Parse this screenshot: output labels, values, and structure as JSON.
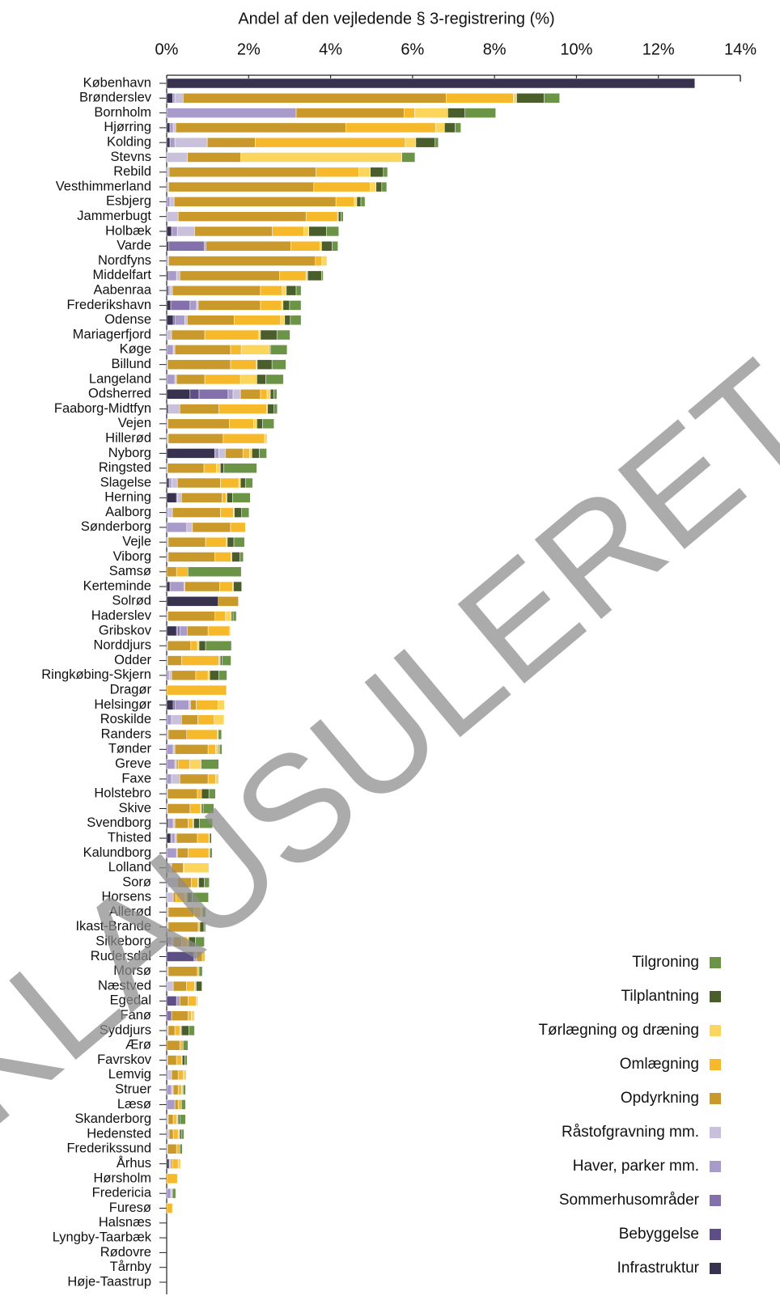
{
  "chart_data": {
    "type": "stacked_barh",
    "x_label": "Andel af den vejledende § 3-registrering (%)",
    "watermark": "KLAUSULERET",
    "xlim": [
      0,
      14
    ],
    "xticks": [
      {
        "value": 0,
        "label": "0%"
      },
      {
        "value": 2,
        "label": "2%"
      },
      {
        "value": 4,
        "label": "4%"
      },
      {
        "value": 6,
        "label": "6%"
      },
      {
        "value": 8,
        "label": "8%"
      },
      {
        "value": 10,
        "label": "10%"
      },
      {
        "value": 12,
        "label": "12%"
      },
      {
        "value": 14,
        "label": "14%"
      }
    ],
    "legend": "lower right",
    "categories": [
      "København",
      "Brønderslev",
      "Bornholm",
      "Hjørring",
      "Kolding",
      "Stevns",
      "Rebild",
      "Vesthimmerland",
      "Esbjerg",
      "Jammerbugt",
      "Holbæk",
      "Varde",
      "Nordfyns",
      "Middelfart",
      "Aabenraa",
      "Frederikshavn",
      "Odense",
      "Mariagerfjord",
      "Køge",
      "Billund",
      "Langeland",
      "Odsherred",
      "Faaborg-Midtfyn",
      "Vejen",
      "Hillerød",
      "Nyborg",
      "Ringsted",
      "Slagelse",
      "Herning",
      "Aalborg",
      "Sønderborg",
      "Vejle",
      "Viborg",
      "Samsø",
      "Kerteminde",
      "Solrød",
      "Haderslev",
      "Gribskov",
      "Norddjurs",
      "Odder",
      "Ringkøbing-Skjern",
      "Dragør",
      "Helsingør",
      "Roskilde",
      "Randers",
      "Tønder",
      "Greve",
      "Faxe",
      "Holstebro",
      "Skive",
      "Svendborg",
      "Thisted",
      "Kalundborg",
      "Lolland",
      "Sorø",
      "Horsens",
      "Allerød",
      "Ikast-Brande",
      "Silkeborg",
      "Rudersdal",
      "Morsø",
      "Næstved",
      "Egedal",
      "Fanø",
      "Syddjurs",
      "Ærø",
      "Favrskov",
      "Lemvig",
      "Struer",
      "Læsø",
      "Skanderborg",
      "Hedensted",
      "Frederikssund",
      "Århus",
      "Hørsholm",
      "Fredericia",
      "Furesø",
      "Halsnæs",
      "Lyngby-Taarbæk",
      "Rødovre",
      "Tårnby",
      "Høje-Taastrup"
    ],
    "series": [
      {
        "name": "Infrastruktur",
        "color": "#38324f",
        "values": [
          12.89,
          0.15,
          0,
          0.08,
          0.08,
          0,
          0,
          0,
          0,
          0,
          0.12,
          0.05,
          0,
          0.04,
          0.04,
          0.1,
          0.16,
          0,
          0,
          0,
          0,
          0.57,
          0.04,
          0,
          0,
          1.17,
          0,
          0.06,
          0.24,
          0,
          0,
          0,
          0,
          0,
          0.08,
          1.26,
          0,
          0.24,
          0,
          0,
          0,
          0,
          0.16,
          0,
          0,
          0,
          0,
          0,
          0,
          0,
          0.04,
          0.1,
          0,
          0,
          0,
          0,
          0,
          0,
          0.04,
          0,
          0,
          0,
          0,
          0,
          0,
          0,
          0,
          0,
          0,
          0,
          0,
          0,
          0,
          0.06,
          0,
          0,
          0,
          0,
          0,
          0,
          0,
          0
        ]
      },
      {
        "name": "Bebyggelse",
        "color": "#5d4e86",
        "values": [
          0,
          0,
          0,
          0,
          0,
          0,
          0,
          0,
          0,
          0,
          0,
          0,
          0,
          0,
          0,
          0,
          0.04,
          0,
          0,
          0,
          0,
          0.22,
          0,
          0,
          0,
          0,
          0,
          0,
          0.02,
          0,
          0,
          0,
          0,
          0,
          0,
          0,
          0,
          0.02,
          0,
          0,
          0,
          0,
          0.04,
          0,
          0,
          0,
          0,
          0,
          0,
          0,
          0,
          0.02,
          0,
          0,
          0,
          0,
          0,
          0,
          0,
          0.67,
          0,
          0,
          0.24,
          0,
          0,
          0,
          0,
          0,
          0,
          0,
          0,
          0,
          0,
          0,
          0,
          0,
          0,
          0,
          0,
          0,
          0,
          0
        ]
      },
      {
        "name": "Sommerhusområder",
        "color": "#8471ac",
        "values": [
          0,
          0,
          0,
          0,
          0,
          0,
          0,
          0,
          0,
          0,
          0,
          0.87,
          0,
          0,
          0,
          0.47,
          0,
          0,
          0,
          0,
          0,
          0.71,
          0,
          0,
          0,
          0,
          0,
          0,
          0,
          0,
          0,
          0,
          0,
          0,
          0,
          0,
          0,
          0.06,
          0,
          0,
          0,
          0,
          0,
          0,
          0,
          0,
          0,
          0,
          0,
          0,
          0,
          0,
          0,
          0,
          0,
          0,
          0,
          0,
          0,
          0,
          0,
          0,
          0,
          0.12,
          0,
          0,
          0,
          0,
          0,
          0,
          0,
          0,
          0,
          0,
          0,
          0,
          0,
          0,
          0,
          0,
          0,
          0
        ]
      },
      {
        "name": "Haver, parker mm.",
        "color": "#a99bc9",
        "values": [
          0,
          0.05,
          3.16,
          0.08,
          0.12,
          0,
          0,
          0,
          0.08,
          0,
          0.14,
          0.04,
          0,
          0.2,
          0.04,
          0.16,
          0.24,
          0,
          0.16,
          0,
          0.2,
          0.12,
          0,
          0,
          0,
          0.1,
          0,
          0.06,
          0,
          0.04,
          0.49,
          0,
          0,
          0,
          0.34,
          0,
          0,
          0.18,
          0,
          0,
          0.06,
          0,
          0.34,
          0.12,
          0,
          0.16,
          0.2,
          0.12,
          0,
          0,
          0.12,
          0.08,
          0.24,
          0.06,
          0,
          0,
          0,
          0,
          0.08,
          0.06,
          0,
          0,
          0.08,
          0,
          0,
          0,
          0,
          0.04,
          0.12,
          0.2,
          0,
          0,
          0,
          0,
          0,
          0.1,
          0,
          0,
          0,
          0,
          0,
          0
        ]
      },
      {
        "name": "Råstofgravning mm.",
        "color": "#c9c0dc",
        "values": [
          0,
          0.2,
          0,
          0.06,
          0.79,
          0.51,
          0.06,
          0.05,
          0.1,
          0.28,
          0.42,
          0,
          0.05,
          0.08,
          0.06,
          0.04,
          0.06,
          0.12,
          0.04,
          0.02,
          0.04,
          0.18,
          0.28,
          0.03,
          0.04,
          0.16,
          0.02,
          0.14,
          0.1,
          0.1,
          0.14,
          0.04,
          0.04,
          0,
          0.02,
          0,
          0.03,
          0,
          0.02,
          0.02,
          0.06,
          0,
          0.04,
          0.24,
          0.04,
          0.04,
          0.04,
          0.2,
          0.02,
          0.02,
          0.04,
          0.04,
          0.02,
          0.06,
          0.26,
          0.16,
          0.04,
          0.04,
          0.04,
          0,
          0.04,
          0.16,
          0,
          0,
          0.04,
          0,
          0.02,
          0.08,
          0.04,
          0,
          0.04,
          0.06,
          0.02,
          0.04,
          0,
          0.04,
          0,
          0,
          0,
          0,
          0,
          0
        ]
      },
      {
        "name": "Opdyrkning",
        "color": "#c9992c",
        "values": [
          0,
          6.42,
          2.63,
          4.15,
          1.17,
          1.3,
          3.58,
          3.54,
          3.95,
          3.12,
          1.9,
          2.07,
          3.58,
          2.43,
          2.15,
          1.52,
          1.15,
          0.81,
          1.36,
          1.54,
          0.69,
          0.49,
          0.95,
          1.5,
          1.34,
          0.43,
          0.89,
          1.05,
          0.99,
          1.17,
          0.93,
          0.91,
          1.13,
          0.24,
          0.85,
          0.49,
          1.15,
          0.51,
          0.57,
          0.34,
          0.59,
          0,
          0.14,
          0.4,
          0.45,
          0.81,
          0.04,
          0.69,
          0.73,
          0.55,
          0.32,
          0.51,
          0.26,
          0.28,
          0.34,
          0.06,
          0.63,
          0.73,
          0.2,
          0.14,
          0.71,
          0.32,
          0.2,
          0.4,
          0.16,
          0.32,
          0.22,
          0.16,
          0.12,
          0.08,
          0.12,
          0.1,
          0.22,
          0.04,
          0,
          0,
          0,
          0,
          0,
          0,
          0,
          0
        ]
      },
      {
        "name": "Omlægning",
        "color": "#f6b92b",
        "values": [
          0,
          1.64,
          0.26,
          2.19,
          3.66,
          0,
          1.05,
          1.38,
          0.45,
          0.77,
          0.77,
          0.71,
          0.16,
          0.65,
          0.53,
          0.51,
          1.13,
          1.32,
          0.26,
          0.63,
          0.87,
          0.16,
          1.17,
          0.59,
          1.01,
          0.16,
          0.3,
          0.45,
          0.1,
          0.32,
          0.36,
          0.51,
          0.4,
          0.28,
          0.32,
          0,
          0.26,
          0.53,
          0.16,
          0.91,
          0.3,
          1.46,
          0.53,
          0.4,
          0.75,
          0.18,
          0.28,
          0.18,
          0.1,
          0.26,
          0.12,
          0.28,
          0.51,
          0.02,
          0.16,
          0.22,
          0.16,
          0.04,
          0.14,
          0.06,
          0.04,
          0.2,
          0.2,
          0.08,
          0.12,
          0.08,
          0.12,
          0.12,
          0.08,
          0.08,
          0.08,
          0.12,
          0.08,
          0.14,
          0.26,
          0,
          0.14,
          0,
          0,
          0,
          0,
          0
        ]
      },
      {
        "name": "Tørlægning og dræning",
        "color": "#fcd55c",
        "values": [
          0,
          0.08,
          0.81,
          0.22,
          0.26,
          3.93,
          0.28,
          0.14,
          0.06,
          0.02,
          0.12,
          0.04,
          0.12,
          0.04,
          0.1,
          0.04,
          0.1,
          0.04,
          0.69,
          0.02,
          0.4,
          0.08,
          0.02,
          0.08,
          0.06,
          0.06,
          0.1,
          0.04,
          0.02,
          0.02,
          0,
          0.02,
          0.02,
          0,
          0.02,
          0,
          0.14,
          0.02,
          0.04,
          0.04,
          0.04,
          0,
          0.16,
          0.24,
          0.02,
          0.08,
          0.28,
          0.08,
          0,
          0.02,
          0.02,
          0.02,
          0.02,
          0.61,
          0.02,
          0.06,
          0.04,
          0,
          0.04,
          0,
          0,
          0.04,
          0.04,
          0.08,
          0.04,
          0,
          0.02,
          0.08,
          0.04,
          0,
          0.04,
          0.04,
          0,
          0.06,
          0,
          0,
          0,
          0,
          0,
          0,
          0,
          0
        ]
      },
      {
        "name": "Tilplantning",
        "color": "#4a5e2b",
        "values": [
          0,
          0.67,
          0.42,
          0.26,
          0.47,
          0,
          0.32,
          0.14,
          0.1,
          0.06,
          0.43,
          0.26,
          0,
          0.34,
          0.24,
          0.16,
          0.14,
          0.4,
          0.02,
          0.36,
          0.22,
          0.08,
          0.16,
          0.14,
          0,
          0.18,
          0.08,
          0.12,
          0.14,
          0.18,
          0,
          0.16,
          0.2,
          0,
          0.2,
          0,
          0.04,
          0,
          0.16,
          0.04,
          0.22,
          0,
          0,
          0,
          0,
          0.02,
          0,
          0,
          0.18,
          0.04,
          0.14,
          0.04,
          0,
          0,
          0.14,
          0.12,
          0,
          0.1,
          0.16,
          0,
          0,
          0.14,
          0,
          0,
          0.18,
          0,
          0.06,
          0,
          0,
          0,
          0.04,
          0.04,
          0,
          0,
          0,
          0,
          0,
          0,
          0,
          0,
          0,
          0
        ]
      },
      {
        "name": "Tilgroning",
        "color": "#6c9447",
        "values": [
          0,
          0.38,
          0.75,
          0.14,
          0.08,
          0.32,
          0.1,
          0.12,
          0.1,
          0.06,
          0.3,
          0.14,
          0,
          0.04,
          0.12,
          0.28,
          0.26,
          0.32,
          0.41,
          0.34,
          0.43,
          0.08,
          0.08,
          0.28,
          0,
          0.18,
          0.81,
          0.18,
          0.43,
          0.18,
          0,
          0.26,
          0.08,
          1.3,
          0,
          0,
          0.08,
          0,
          0.63,
          0.22,
          0.2,
          0,
          0,
          0,
          0.08,
          0.06,
          0.43,
          0,
          0.16,
          0.26,
          0.32,
          0,
          0.06,
          0,
          0.12,
          0.4,
          0.08,
          0.04,
          0.22,
          0,
          0.08,
          0,
          0,
          0,
          0.14,
          0.12,
          0.06,
          0,
          0.06,
          0.1,
          0.14,
          0.06,
          0.06,
          0,
          0,
          0.08,
          0,
          0,
          0,
          0,
          0,
          0
        ]
      }
    ]
  }
}
